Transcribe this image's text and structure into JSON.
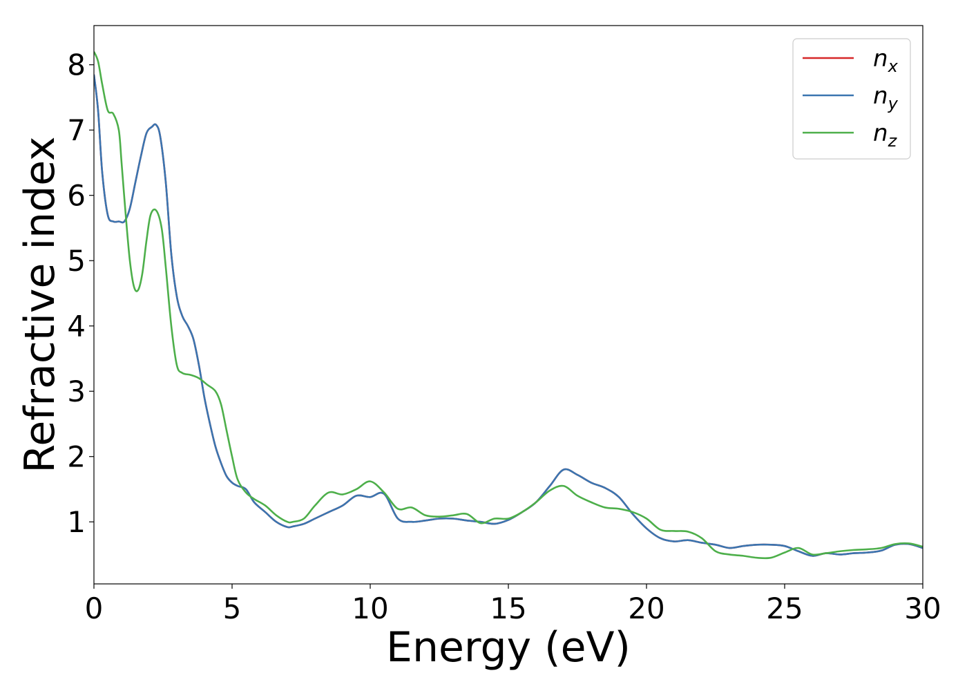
{
  "chart_data": {
    "type": "line",
    "xlabel": "Energy (eV)",
    "ylabel": "Refractive index",
    "xlim": [
      0,
      30
    ],
    "ylim": [
      0.05,
      8.6
    ],
    "xticks": [
      0,
      5,
      10,
      15,
      20,
      25,
      30
    ],
    "xtick_labels": [
      "0",
      "5",
      "10",
      "15",
      "20",
      "25",
      "30"
    ],
    "yticks": [
      1,
      2,
      3,
      4,
      5,
      6,
      7,
      8
    ],
    "ytick_labels": [
      "1",
      "2",
      "3",
      "4",
      "5",
      "6",
      "7",
      "8"
    ],
    "grid": false,
    "legend_position": "top-right",
    "series": [
      {
        "name": "n_x",
        "label_main": "n",
        "label_sub": "x",
        "color": "#d62728",
        "x": [
          0,
          0.15,
          0.3,
          0.5,
          0.7,
          0.9,
          1.1,
          1.3,
          1.5,
          1.7,
          1.9,
          2.1,
          2.25,
          2.4,
          2.6,
          2.8,
          3.0,
          3.2,
          3.4,
          3.6,
          3.8,
          4.0,
          4.2,
          4.4,
          4.6,
          4.8,
          5.0,
          5.2,
          5.5,
          5.8,
          6.2,
          6.6,
          7.0,
          7.2,
          7.6,
          8.0,
          8.5,
          9.0,
          9.5,
          10.0,
          10.5,
          11.0,
          11.5,
          12.0,
          12.5,
          13.0,
          13.5,
          14.0,
          14.5,
          15.0,
          15.5,
          16.0,
          16.5,
          17.0,
          17.5,
          18.0,
          18.5,
          19.0,
          19.5,
          20.0,
          20.5,
          21.0,
          21.5,
          22.0,
          22.5,
          23.0,
          23.5,
          24.0,
          24.5,
          25.0,
          25.5,
          26.0,
          26.5,
          27.0,
          27.5,
          28.0,
          28.5,
          29.0,
          29.5,
          30.0
        ],
        "y": [
          7.85,
          7.3,
          6.35,
          5.7,
          5.6,
          5.6,
          5.6,
          5.8,
          6.2,
          6.6,
          6.95,
          7.05,
          7.08,
          6.9,
          6.2,
          5.1,
          4.45,
          4.15,
          4.0,
          3.8,
          3.4,
          2.9,
          2.5,
          2.15,
          1.9,
          1.7,
          1.6,
          1.55,
          1.5,
          1.3,
          1.15,
          1.0,
          0.92,
          0.93,
          0.97,
          1.05,
          1.15,
          1.25,
          1.4,
          1.38,
          1.43,
          1.05,
          1.0,
          1.02,
          1.05,
          1.05,
          1.02,
          1.0,
          0.97,
          1.03,
          1.15,
          1.3,
          1.55,
          1.8,
          1.72,
          1.6,
          1.52,
          1.38,
          1.12,
          0.9,
          0.75,
          0.7,
          0.72,
          0.68,
          0.65,
          0.6,
          0.63,
          0.65,
          0.65,
          0.63,
          0.55,
          0.48,
          0.52,
          0.5,
          0.52,
          0.53,
          0.56,
          0.65,
          0.66,
          0.6
        ]
      },
      {
        "name": "n_y",
        "label_main": "n",
        "label_sub": "y",
        "color": "#3a75b0",
        "x": [
          0,
          0.15,
          0.3,
          0.5,
          0.7,
          0.9,
          1.1,
          1.3,
          1.5,
          1.7,
          1.9,
          2.1,
          2.25,
          2.4,
          2.6,
          2.8,
          3.0,
          3.2,
          3.4,
          3.6,
          3.8,
          4.0,
          4.2,
          4.4,
          4.6,
          4.8,
          5.0,
          5.2,
          5.5,
          5.8,
          6.2,
          6.6,
          7.0,
          7.2,
          7.6,
          8.0,
          8.5,
          9.0,
          9.5,
          10.0,
          10.5,
          11.0,
          11.5,
          12.0,
          12.5,
          13.0,
          13.5,
          14.0,
          14.5,
          15.0,
          15.5,
          16.0,
          16.5,
          17.0,
          17.5,
          18.0,
          18.5,
          19.0,
          19.5,
          20.0,
          20.5,
          21.0,
          21.5,
          22.0,
          22.5,
          23.0,
          23.5,
          24.0,
          24.5,
          25.0,
          25.5,
          26.0,
          26.5,
          27.0,
          27.5,
          28.0,
          28.5,
          29.0,
          29.5,
          30.0
        ],
        "y": [
          7.85,
          7.3,
          6.35,
          5.7,
          5.6,
          5.6,
          5.6,
          5.8,
          6.2,
          6.6,
          6.95,
          7.05,
          7.08,
          6.9,
          6.2,
          5.1,
          4.45,
          4.15,
          4.0,
          3.8,
          3.4,
          2.9,
          2.5,
          2.15,
          1.9,
          1.7,
          1.6,
          1.55,
          1.5,
          1.3,
          1.15,
          1.0,
          0.92,
          0.93,
          0.97,
          1.05,
          1.15,
          1.25,
          1.4,
          1.38,
          1.43,
          1.05,
          1.0,
          1.02,
          1.05,
          1.05,
          1.02,
          1.0,
          0.97,
          1.03,
          1.15,
          1.3,
          1.55,
          1.8,
          1.72,
          1.6,
          1.52,
          1.38,
          1.12,
          0.9,
          0.75,
          0.7,
          0.72,
          0.68,
          0.65,
          0.6,
          0.63,
          0.65,
          0.65,
          0.63,
          0.55,
          0.48,
          0.52,
          0.5,
          0.52,
          0.53,
          0.56,
          0.65,
          0.66,
          0.6
        ]
      },
      {
        "name": "n_z",
        "label_main": "n",
        "label_sub": "z",
        "color": "#4daf4a",
        "x": [
          0,
          0.15,
          0.3,
          0.5,
          0.7,
          0.9,
          1.0,
          1.15,
          1.3,
          1.45,
          1.6,
          1.75,
          1.9,
          2.05,
          2.25,
          2.45,
          2.6,
          2.8,
          3.0,
          3.2,
          3.5,
          3.8,
          4.1,
          4.4,
          4.6,
          4.8,
          5.0,
          5.2,
          5.5,
          5.8,
          6.2,
          6.6,
          7.0,
          7.2,
          7.6,
          8.0,
          8.5,
          9.0,
          9.5,
          10.0,
          10.5,
          11.0,
          11.5,
          12.0,
          12.5,
          13.0,
          13.5,
          14.0,
          14.5,
          15.0,
          15.5,
          16.0,
          16.5,
          17.0,
          17.5,
          18.0,
          18.5,
          19.0,
          19.5,
          20.0,
          20.5,
          21.0,
          21.5,
          22.0,
          22.5,
          23.0,
          23.5,
          24.0,
          24.5,
          25.0,
          25.5,
          26.0,
          26.5,
          27.0,
          27.5,
          28.0,
          28.5,
          29.0,
          29.5,
          30.0
        ],
        "y": [
          8.2,
          8.05,
          7.7,
          7.3,
          7.25,
          7.0,
          6.5,
          5.7,
          5.0,
          4.6,
          4.55,
          4.8,
          5.3,
          5.7,
          5.77,
          5.5,
          4.9,
          4.0,
          3.4,
          3.28,
          3.25,
          3.2,
          3.1,
          3.0,
          2.8,
          2.4,
          2.0,
          1.65,
          1.45,
          1.35,
          1.25,
          1.1,
          1.0,
          1.0,
          1.05,
          1.25,
          1.45,
          1.42,
          1.5,
          1.62,
          1.45,
          1.2,
          1.22,
          1.1,
          1.08,
          1.1,
          1.12,
          0.98,
          1.05,
          1.05,
          1.15,
          1.3,
          1.48,
          1.55,
          1.4,
          1.3,
          1.22,
          1.2,
          1.15,
          1.05,
          0.88,
          0.86,
          0.85,
          0.75,
          0.55,
          0.5,
          0.48,
          0.45,
          0.45,
          0.53,
          0.6,
          0.5,
          0.52,
          0.55,
          0.57,
          0.58,
          0.6,
          0.66,
          0.67,
          0.62
        ]
      }
    ]
  }
}
